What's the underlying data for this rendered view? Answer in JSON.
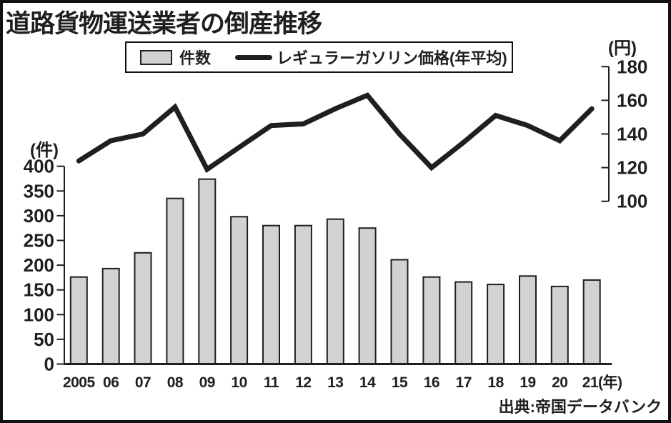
{
  "title": "道路貨物運送業者の倒産推移",
  "source": "出典:帝国データバンク",
  "legend": {
    "bar_label": "件数",
    "line_label": "レギュラーガソリン価格(年平均)"
  },
  "chart_data": {
    "type": "combo",
    "categories": [
      "2005",
      "06",
      "07",
      "08",
      "09",
      "10",
      "11",
      "12",
      "13",
      "14",
      "15",
      "16",
      "17",
      "18",
      "19",
      "20",
      "21(年)"
    ],
    "series": [
      {
        "name": "件数",
        "type": "bar",
        "axis": "left",
        "values": [
          176,
          193,
          225,
          335,
          374,
          298,
          280,
          280,
          293,
          275,
          211,
          176,
          166,
          161,
          178,
          157,
          170
        ]
      },
      {
        "name": "レギュラーガソリン価格(年平均)",
        "type": "line",
        "axis": "right",
        "values": [
          124,
          136,
          140,
          156,
          119,
          132,
          145,
          146,
          155,
          163,
          140,
          120,
          135,
          151,
          145,
          136,
          155
        ]
      }
    ],
    "left_axis": {
      "unit": "(件)",
      "ticks": [
        400,
        350,
        300,
        250,
        200,
        150,
        100,
        50,
        0
      ],
      "range": [
        0,
        400
      ]
    },
    "right_axis": {
      "unit": "(円)",
      "ticks": [
        180,
        160,
        140,
        120,
        100
      ],
      "range": [
        100,
        180
      ]
    },
    "grid": false,
    "legend_position": "top"
  },
  "colors": {
    "bar_fill": "#d2d2d2",
    "bar_border": "#1f1f1f",
    "line": "#1f1f1f",
    "axis": "#1f1f1f",
    "background": "#ffffff",
    "frame": "#111111"
  }
}
